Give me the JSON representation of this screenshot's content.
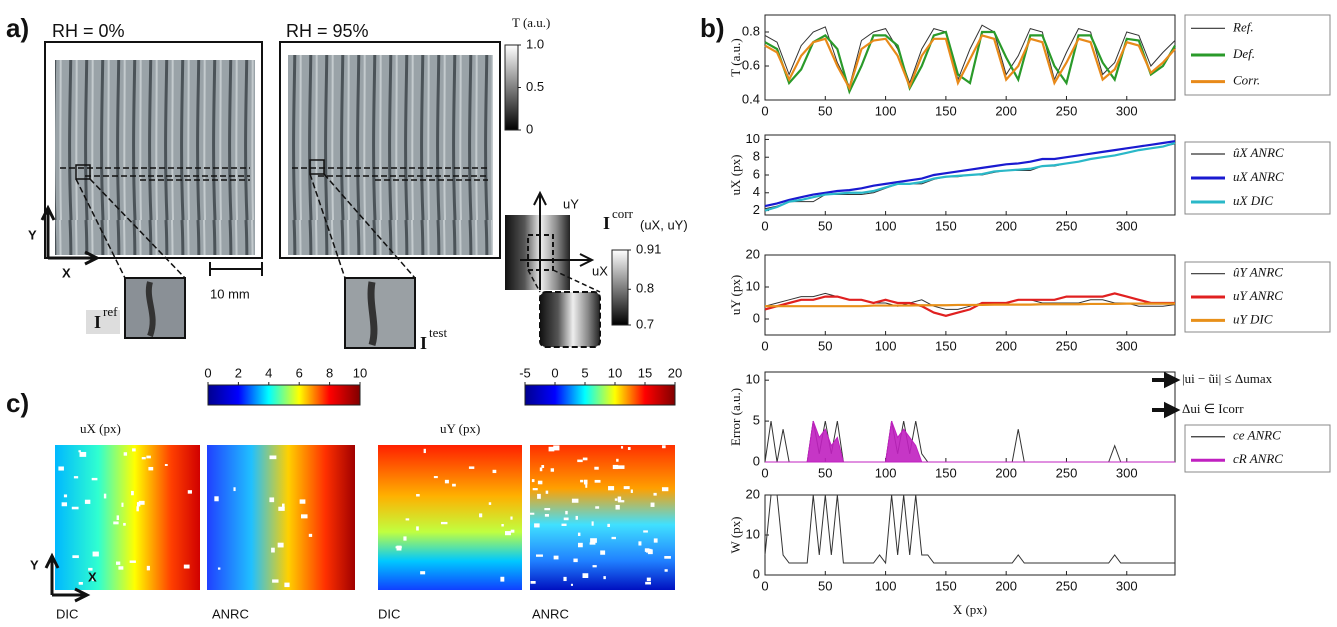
{
  "figure": {
    "panel_labels": [
      "a)",
      "b)",
      "c)"
    ],
    "a": {
      "titles": [
        "RH = 0%",
        "RH = 95%"
      ],
      "axis_x": "X",
      "axis_y": "Y",
      "scale": "10 mm",
      "ref": {
        "base": "I",
        "sup": "ref"
      },
      "test": {
        "base": "I",
        "sup": "test"
      },
      "corr": {
        "base": "I",
        "sup": "corr",
        "args": "(uX, uY)"
      },
      "ux": "uX",
      "uy": "uY"
    },
    "c": {
      "methods": [
        "DIC",
        "ANRC",
        "DIC",
        "ANRC"
      ],
      "axis_x": "X",
      "axis_y": "Y"
    }
  },
  "chart_data": [
    {
      "type": "line",
      "ylabel": "T (a.u.)",
      "x": [
        0,
        10,
        20,
        30,
        40,
        50,
        60,
        70,
        80,
        90,
        100,
        110,
        120,
        130,
        140,
        150,
        160,
        170,
        180,
        190,
        200,
        210,
        220,
        230,
        240,
        250,
        260,
        270,
        280,
        290,
        300,
        310,
        320,
        330,
        340
      ],
      "xlim": [
        0,
        340
      ],
      "xticks": [
        0,
        50,
        100,
        150,
        200,
        250,
        300
      ],
      "ylim": [
        0.4,
        0.9
      ],
      "yticks": [
        0.4,
        0.6,
        0.8
      ],
      "series": [
        {
          "name": "Ref.",
          "color": "#333333",
          "values": [
            0.78,
            0.74,
            0.55,
            0.72,
            0.8,
            0.83,
            0.62,
            0.48,
            0.75,
            0.8,
            0.82,
            0.7,
            0.5,
            0.7,
            0.82,
            0.8,
            0.52,
            0.7,
            0.84,
            0.8,
            0.55,
            0.66,
            0.82,
            0.8,
            0.52,
            0.68,
            0.82,
            0.8,
            0.55,
            0.62,
            0.8,
            0.78,
            0.6,
            0.68,
            0.75
          ]
        },
        {
          "name": "Def.",
          "color": "#2a9a2a",
          "values": [
            0.74,
            0.7,
            0.5,
            0.58,
            0.74,
            0.78,
            0.7,
            0.45,
            0.6,
            0.78,
            0.78,
            0.72,
            0.47,
            0.6,
            0.78,
            0.8,
            0.55,
            0.5,
            0.8,
            0.8,
            0.65,
            0.52,
            0.78,
            0.78,
            0.6,
            0.5,
            0.78,
            0.78,
            0.62,
            0.52,
            0.76,
            0.75,
            0.55,
            0.6,
            0.72
          ]
        },
        {
          "name": "Corr.",
          "color": "#e88a1a",
          "values": [
            0.72,
            0.68,
            0.52,
            0.66,
            0.74,
            0.76,
            0.6,
            0.47,
            0.7,
            0.75,
            0.76,
            0.66,
            0.48,
            0.66,
            0.76,
            0.76,
            0.5,
            0.64,
            0.78,
            0.76,
            0.52,
            0.6,
            0.76,
            0.74,
            0.5,
            0.62,
            0.76,
            0.74,
            0.52,
            0.58,
            0.74,
            0.72,
            0.56,
            0.62,
            0.7
          ]
        }
      ]
    },
    {
      "type": "line",
      "ylabel": "uX (px)",
      "x": [
        0,
        10,
        20,
        30,
        40,
        50,
        60,
        70,
        80,
        90,
        100,
        110,
        120,
        130,
        140,
        150,
        160,
        170,
        180,
        190,
        200,
        210,
        220,
        230,
        240,
        250,
        260,
        270,
        280,
        290,
        300,
        310,
        320,
        330,
        340
      ],
      "xlim": [
        0,
        340
      ],
      "xticks": [
        0,
        50,
        100,
        150,
        200,
        250,
        300
      ],
      "ylim": [
        1.5,
        10.5
      ],
      "yticks": [
        2,
        4,
        6,
        8,
        10
      ],
      "series": [
        {
          "name": "ûX ANRC",
          "color": "#333333",
          "values": [
            2.2,
            2.5,
            3,
            3,
            3,
            3.8,
            3.8,
            3.8,
            3.8,
            4,
            4.5,
            5,
            5,
            5,
            5.5,
            5.8,
            5.8,
            6,
            6,
            6.3,
            6.5,
            6.5,
            6.5,
            7,
            7,
            7.3,
            7.5,
            7.8,
            8,
            8.2,
            8.5,
            8.8,
            9,
            9.2,
            9.5
          ]
        },
        {
          "name": "uX ANRC",
          "color": "#1a1ad0",
          "values": [
            2.5,
            2.8,
            3.2,
            3.5,
            3.8,
            4,
            4.2,
            4.3,
            4.5,
            4.8,
            5,
            5.2,
            5.4,
            5.6,
            6,
            6.2,
            6.4,
            6.6,
            6.8,
            7,
            7.2,
            7.3,
            7.5,
            7.8,
            7.8,
            8,
            8.2,
            8.4,
            8.6,
            8.8,
            9,
            9.2,
            9.4,
            9.6,
            9.8
          ]
        },
        {
          "name": "uX DIC",
          "color": "#2ab8c8",
          "values": [
            2,
            2.4,
            3,
            3.2,
            3.5,
            3.8,
            3.9,
            4,
            4,
            4.2,
            4.6,
            5,
            5,
            5.2,
            5.6,
            5.8,
            5.9,
            6,
            6.1,
            6.4,
            6.5,
            6.6,
            6.7,
            7,
            7.1,
            7.3,
            7.5,
            7.8,
            8,
            8.2,
            8.5,
            8.8,
            9,
            9.2,
            9.6
          ]
        }
      ]
    },
    {
      "type": "line",
      "ylabel": "uY (px)",
      "x": [
        0,
        10,
        20,
        30,
        40,
        50,
        60,
        70,
        80,
        90,
        100,
        110,
        120,
        130,
        140,
        150,
        160,
        170,
        180,
        190,
        200,
        210,
        220,
        230,
        240,
        250,
        260,
        270,
        280,
        290,
        300,
        310,
        320,
        330,
        340
      ],
      "xlim": [
        0,
        340
      ],
      "xticks": [
        0,
        50,
        100,
        150,
        200,
        250,
        300
      ],
      "ylim": [
        -5,
        20
      ],
      "yticks": [
        0,
        10,
        20
      ],
      "series": [
        {
          "name": "ûY ANRC",
          "color": "#333333",
          "values": [
            4,
            5,
            6,
            7,
            7,
            8,
            7,
            6,
            6,
            5,
            5,
            4,
            5,
            6,
            4,
            3,
            3,
            4,
            5,
            5,
            5,
            6,
            6,
            5,
            5,
            5,
            5,
            6,
            6,
            5,
            5,
            4,
            4,
            4,
            4.5
          ]
        },
        {
          "name": "uY ANRC",
          "color": "#e02020",
          "values": [
            3,
            4,
            5,
            6,
            6,
            7,
            7,
            6,
            6,
            5,
            6,
            5,
            5,
            4,
            2,
            1,
            2,
            3,
            5,
            5,
            5,
            6,
            6,
            6,
            6,
            7,
            7,
            7,
            7,
            8,
            7,
            6,
            5,
            5,
            5
          ]
        },
        {
          "name": "uY DIC",
          "color": "#e8901a",
          "values": [
            4,
            4,
            4,
            4,
            4,
            4,
            4,
            4,
            4,
            4.2,
            4.2,
            4.2,
            4.2,
            4.3,
            4.3,
            4.3,
            4.4,
            4.4,
            4.4,
            4.5,
            4.5,
            4.5,
            4.5,
            4.6,
            4.6,
            4.6,
            4.6,
            4.7,
            4.7,
            4.7,
            4.8,
            4.8,
            4.8,
            4.8,
            4.8
          ]
        }
      ]
    },
    {
      "type": "line",
      "ylabel": "Error (a.u.)",
      "annotations": [
        "|ui − ũi| ≤ Δumax",
        "Δui ∈ Icorr"
      ],
      "x": [
        0,
        5,
        10,
        15,
        20,
        25,
        30,
        35,
        40,
        45,
        50,
        55,
        60,
        65,
        70,
        75,
        80,
        85,
        90,
        95,
        100,
        105,
        110,
        115,
        120,
        125,
        130,
        135,
        140,
        145,
        150,
        155,
        160,
        165,
        170,
        175,
        180,
        185,
        190,
        195,
        200,
        205,
        210,
        215,
        220,
        225,
        230,
        235,
        240,
        245,
        250,
        255,
        260,
        265,
        270,
        275,
        280,
        285,
        290,
        295,
        300,
        305,
        310,
        315,
        320,
        325,
        330,
        335,
        340
      ],
      "xlim": [
        0,
        340
      ],
      "xticks": [
        0,
        50,
        100,
        150,
        200,
        250,
        300
      ],
      "ylim": [
        0,
        11
      ],
      "yticks": [
        0,
        5,
        10
      ],
      "series": [
        {
          "name": "ce ANRC",
          "color": "#333333",
          "values": [
            0,
            5,
            0,
            4,
            0,
            0,
            0,
            0,
            5,
            1,
            5,
            1,
            5,
            0,
            0,
            0,
            0,
            0,
            0,
            0,
            0,
            5,
            1,
            5,
            1,
            5,
            1,
            0,
            0,
            0,
            0,
            0,
            0,
            0,
            0,
            0,
            0,
            0,
            0,
            0,
            0,
            0,
            4,
            0,
            0,
            0,
            0,
            0,
            0,
            0,
            0,
            0,
            0,
            0,
            0,
            0,
            0,
            0,
            2,
            0,
            0,
            0,
            0,
            0,
            0,
            0,
            0,
            0,
            0
          ]
        },
        {
          "name": "cR ANRC",
          "color": "#c020c0",
          "area": true,
          "values": [
            0,
            0,
            0,
            0,
            0,
            0,
            0,
            0,
            5,
            3,
            4,
            2,
            3,
            0,
            0,
            0,
            0,
            0,
            0,
            0,
            0,
            5,
            3,
            4,
            3,
            2,
            0,
            0,
            0,
            0,
            0,
            0,
            0,
            0,
            0,
            0,
            0,
            0,
            0,
            0,
            0,
            0,
            0,
            0,
            0,
            0,
            0,
            0,
            0,
            0,
            0,
            0,
            0,
            0,
            0,
            0,
            0,
            0,
            0,
            0,
            0,
            0,
            0,
            0,
            0,
            0,
            0,
            0,
            0
          ]
        }
      ]
    },
    {
      "type": "line",
      "ylabel": "W (px)",
      "xlabel": "X (px)",
      "x": [
        0,
        5,
        10,
        15,
        20,
        25,
        30,
        35,
        40,
        45,
        50,
        55,
        60,
        65,
        70,
        75,
        80,
        85,
        90,
        95,
        100,
        105,
        110,
        115,
        120,
        125,
        130,
        135,
        140,
        145,
        150,
        155,
        160,
        165,
        170,
        175,
        180,
        185,
        190,
        195,
        200,
        205,
        210,
        215,
        220,
        225,
        230,
        235,
        240,
        245,
        250,
        255,
        260,
        265,
        270,
        275,
        280,
        285,
        290,
        295,
        300,
        305,
        310,
        315,
        320,
        325,
        330,
        335,
        340
      ],
      "xlim": [
        0,
        340
      ],
      "xticks": [
        0,
        50,
        100,
        150,
        200,
        250,
        300
      ],
      "ylim": [
        0,
        20
      ],
      "yticks": [
        0,
        10,
        20
      ],
      "series": [
        {
          "color": "#333333",
          "values": [
            5,
            20,
            20,
            5,
            3,
            3,
            3,
            3,
            20,
            5,
            20,
            5,
            20,
            3,
            3,
            3,
            3,
            3,
            3,
            5,
            3,
            20,
            5,
            20,
            5,
            20,
            5,
            5,
            3,
            3,
            3,
            3,
            3,
            3,
            3,
            3,
            3,
            3,
            3,
            3,
            3,
            3,
            5,
            3,
            3,
            3,
            3,
            3,
            3,
            3,
            3,
            3,
            3,
            3,
            3,
            3,
            3,
            3,
            5,
            3,
            3,
            3,
            3,
            3,
            3,
            3,
            3,
            3,
            3
          ]
        }
      ]
    },
    {
      "type": "colorbar",
      "orientation": "vertical",
      "title": "T (a.u.)",
      "ylim": [
        0,
        1
      ],
      "yticks": [
        0,
        0.5,
        {
          "value": 1,
          "label": "1.0"
        }
      ],
      "colors": [
        "#000000",
        "#ffffff"
      ]
    },
    {
      "type": "colorbar",
      "orientation": "vertical",
      "ylim": [
        0.7,
        0.91
      ],
      "yticks": [
        0.7,
        0.8,
        0.91
      ],
      "colors": [
        "#000000",
        "#ffffff"
      ]
    },
    {
      "type": "colorbar",
      "orientation": "horizontal",
      "title": "uX (px)",
      "xlim": [
        0,
        10
      ],
      "xticks": [
        0,
        2,
        4,
        6,
        8,
        10
      ],
      "colors": [
        "#00008f",
        "#0000ff",
        "#00ffff",
        "#ffff00",
        "#ff0000",
        "#800000"
      ]
    },
    {
      "type": "colorbar",
      "orientation": "horizontal",
      "title": "uY (px)",
      "xlim": [
        -5,
        20
      ],
      "xticks": [
        -5,
        0,
        5,
        10,
        15,
        20
      ],
      "colors": [
        "#00008f",
        "#0000ff",
        "#00ffff",
        "#ffff00",
        "#ff0000",
        "#800000"
      ]
    }
  ]
}
